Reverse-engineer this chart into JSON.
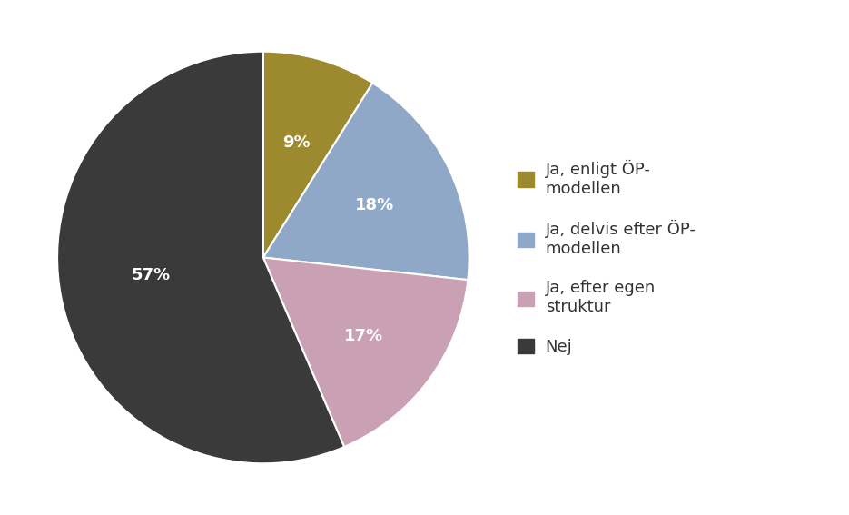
{
  "slices": [
    9,
    18,
    17,
    57
  ],
  "labels": [
    "9%",
    "18%",
    "17%",
    "57%"
  ],
  "colors": [
    "#9e8a2e",
    "#8fa8c8",
    "#c9a0b4",
    "#3a3a3a"
  ],
  "legend_labels": [
    "Ja, enligt ÖP-\nmodellen",
    "Ja, delvis efter ÖP-\nmodellen",
    "Ja, efter egen\nstruktur",
    "Nej"
  ],
  "startangle": 90,
  "background_color": "#ffffff",
  "text_color": "#ffffff",
  "label_fontsize": 13,
  "legend_fontsize": 13
}
